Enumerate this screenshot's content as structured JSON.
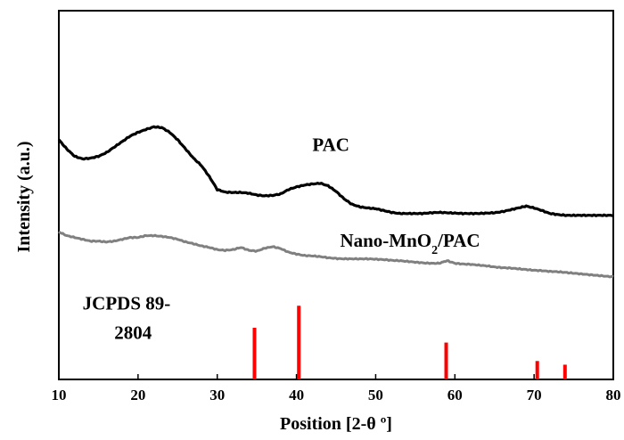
{
  "chart_data": {
    "type": "line",
    "title": "",
    "xlabel": "Position [2-θ º]",
    "ylabel": "Intensity (a.u.)",
    "xlim": [
      10,
      80
    ],
    "ylim": [
      0,
      100
    ],
    "xticks": [
      10,
      20,
      30,
      40,
      50,
      60,
      70,
      80
    ],
    "grid": false,
    "legend": "none",
    "series": [
      {
        "name": "PAC",
        "color": "#000000",
        "points": [
          [
            10,
            65
          ],
          [
            11,
            62.5
          ],
          [
            12,
            60.5
          ],
          [
            13,
            59.8
          ],
          [
            14,
            60
          ],
          [
            15,
            60.5
          ],
          [
            16,
            61.5
          ],
          [
            17,
            63
          ],
          [
            18,
            64.5
          ],
          [
            19,
            66
          ],
          [
            20,
            67
          ],
          [
            21,
            67.8
          ],
          [
            22,
            68.5
          ],
          [
            23,
            68.3
          ],
          [
            24,
            67
          ],
          [
            25,
            65
          ],
          [
            26,
            62.5
          ],
          [
            27,
            60
          ],
          [
            28,
            58
          ],
          [
            29,
            55
          ],
          [
            30,
            51.5
          ],
          [
            31,
            50.8
          ],
          [
            32,
            50.7
          ],
          [
            33,
            50.7
          ],
          [
            34,
            50.5
          ],
          [
            35,
            50
          ],
          [
            36,
            49.8
          ],
          [
            37,
            49.9
          ],
          [
            38,
            50.3
          ],
          [
            39,
            51.5
          ],
          [
            40,
            52.2
          ],
          [
            41,
            52.7
          ],
          [
            42,
            53
          ],
          [
            43,
            53.2
          ],
          [
            44,
            52.5
          ],
          [
            45,
            51
          ],
          [
            46,
            49
          ],
          [
            47,
            47.5
          ],
          [
            48,
            46.8
          ],
          [
            49,
            46.5
          ],
          [
            50,
            46.3
          ],
          [
            51,
            45.8
          ],
          [
            52,
            45.3
          ],
          [
            53,
            45
          ],
          [
            54,
            45
          ],
          [
            55,
            45
          ],
          [
            56,
            45
          ],
          [
            57,
            45.2
          ],
          [
            58,
            45.3
          ],
          [
            59,
            45.2
          ],
          [
            60,
            45.1
          ],
          [
            61,
            45
          ],
          [
            62,
            45
          ],
          [
            63,
            45
          ],
          [
            64,
            45.1
          ],
          [
            65,
            45.2
          ],
          [
            66,
            45.5
          ],
          [
            67,
            46
          ],
          [
            68,
            46.5
          ],
          [
            69,
            47
          ],
          [
            70,
            46.5
          ],
          [
            71,
            45.8
          ],
          [
            72,
            45
          ],
          [
            73,
            44.7
          ],
          [
            74,
            44.5
          ],
          [
            75,
            44.5
          ],
          [
            76,
            44.5
          ],
          [
            77,
            44.5
          ],
          [
            78,
            44.5
          ],
          [
            79,
            44.5
          ],
          [
            80,
            44.5
          ]
        ]
      },
      {
        "name": "Nano-MnO2/PAC",
        "color": "#808080",
        "points": [
          [
            10,
            40
          ],
          [
            11,
            39
          ],
          [
            12,
            38.5
          ],
          [
            13,
            38
          ],
          [
            14,
            37.5
          ],
          [
            15,
            37.5
          ],
          [
            16,
            37.3
          ],
          [
            17,
            37.5
          ],
          [
            18,
            38
          ],
          [
            19,
            38.5
          ],
          [
            20,
            38.5
          ],
          [
            21,
            39
          ],
          [
            22,
            39
          ],
          [
            23,
            38.8
          ],
          [
            24,
            38.5
          ],
          [
            25,
            38
          ],
          [
            26,
            37.3
          ],
          [
            27,
            36.8
          ],
          [
            28,
            36.2
          ],
          [
            29,
            35.8
          ],
          [
            30,
            35.2
          ],
          [
            31,
            35
          ],
          [
            32,
            35.2
          ],
          [
            33,
            35.8
          ],
          [
            34,
            35
          ],
          [
            35,
            34.8
          ],
          [
            36,
            35.6
          ],
          [
            37,
            36
          ],
          [
            38,
            35.5
          ],
          [
            39,
            34.5
          ],
          [
            40,
            34
          ],
          [
            41,
            33.6
          ],
          [
            42,
            33.5
          ],
          [
            43,
            33.3
          ],
          [
            44,
            33
          ],
          [
            45,
            32.8
          ],
          [
            46,
            32.7
          ],
          [
            47,
            32.7
          ],
          [
            48,
            32.7
          ],
          [
            49,
            32.7
          ],
          [
            50,
            32.6
          ],
          [
            51,
            32.5
          ],
          [
            52,
            32.3
          ],
          [
            53,
            32.2
          ],
          [
            54,
            32
          ],
          [
            55,
            31.8
          ],
          [
            56,
            31.6
          ],
          [
            57,
            31.5
          ],
          [
            58,
            31.5
          ],
          [
            59,
            32.2
          ],
          [
            60,
            31.5
          ],
          [
            61,
            31.3
          ],
          [
            62,
            31.2
          ],
          [
            63,
            31
          ],
          [
            64,
            30.8
          ],
          [
            65,
            30.5
          ],
          [
            66,
            30.3
          ],
          [
            67,
            30.2
          ],
          [
            68,
            30
          ],
          [
            69,
            29.8
          ],
          [
            70,
            29.6
          ],
          [
            71,
            29.5
          ],
          [
            72,
            29.3
          ],
          [
            73,
            29.2
          ],
          [
            74,
            29
          ],
          [
            75,
            28.8
          ],
          [
            76,
            28.6
          ],
          [
            77,
            28.4
          ],
          [
            78,
            28.2
          ],
          [
            79,
            28
          ],
          [
            80,
            27.8
          ]
        ]
      }
    ],
    "reference": {
      "color": "#ff0000",
      "peaks": [
        [
          34.7,
          14
        ],
        [
          40.3,
          20
        ],
        [
          58.9,
          10
        ],
        [
          70.4,
          5
        ],
        [
          73.9,
          4
        ]
      ]
    },
    "annotations": [
      {
        "text": "PAC",
        "x": 42,
        "y": 62
      },
      {
        "text": "Nano-MnO2/PAC",
        "x": 45.5,
        "y": 36
      },
      {
        "text": "JCPDS 89-",
        "x": 13,
        "y": 19
      },
      {
        "text": "2804",
        "x": 17,
        "y": 11
      }
    ]
  }
}
